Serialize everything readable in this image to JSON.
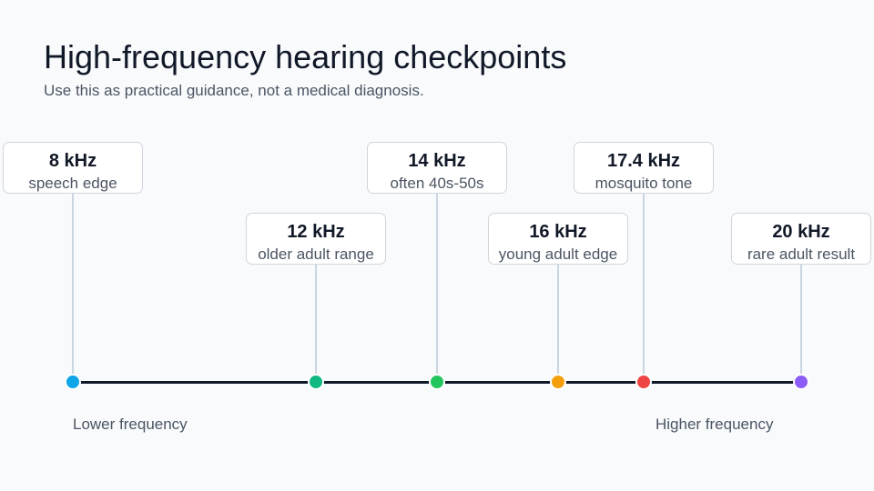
{
  "title": "High-frequency hearing checkpoints",
  "subtitle": "Use this as practical guidance, not a medical diagnosis.",
  "axis": {
    "low_label": "Lower frequency",
    "high_label": "Higher frequency",
    "min_khz": 8,
    "max_khz": 20
  },
  "checkpoints": [
    {
      "value": "8 kHz",
      "khz": 8,
      "label": "speech edge",
      "color": "#0ea5e9"
    },
    {
      "value": "12 kHz",
      "khz": 12,
      "label": "older adult range",
      "color": "#10b981"
    },
    {
      "value": "14 kHz",
      "khz": 14,
      "label": "often 40s-50s",
      "color": "#22c55e"
    },
    {
      "value": "16 kHz",
      "khz": 16,
      "label": "young adult edge",
      "color": "#f59e0b"
    },
    {
      "value": "17.4 kHz",
      "khz": 17.4,
      "label": "mosquito tone",
      "color": "#ef4444"
    },
    {
      "value": "20 kHz",
      "khz": 20,
      "label": "rare adult result",
      "color": "#8b5cf6"
    }
  ]
}
